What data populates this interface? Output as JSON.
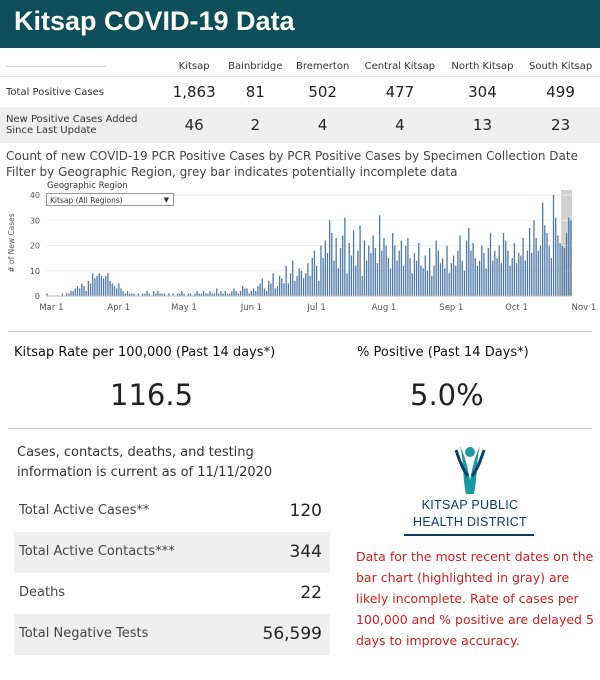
{
  "header": {
    "title": "Kitsap COVID-19 Data",
    "bg_color": "#0e4d5a"
  },
  "summary": {
    "columns": [
      "Kitsap",
      "Bainbridge",
      "Bremerton",
      "Central Kitsap",
      "North Kitsap",
      "South Kitsap"
    ],
    "total_row": {
      "label": "Total Positive Cases",
      "values": [
        "1,863",
        "81",
        "502",
        "477",
        "304",
        "499"
      ]
    },
    "new_row": {
      "label_line1": "New Positive Cases Added",
      "label_line2": "Since Last Update",
      "values": [
        "46",
        "2",
        "4",
        "4",
        "13",
        "23"
      ]
    }
  },
  "chart": {
    "title": "Count of new COVID-19 PCR Positive Cases by PCR Positive Cases by Specimen Collection Date",
    "subtitle": "Filter by Geographic Region, grey bar indicates potentially incomplete data",
    "filter_label": "Geographic Region",
    "filter_value": "Kitsap (All Regions)"
  },
  "chart_data": {
    "type": "bar",
    "ylabel": "# of New Cases",
    "ylim": [
      0,
      42
    ],
    "yticks": [
      0,
      10,
      20,
      30,
      40
    ],
    "xticks": [
      "Mar 1",
      "Apr 1",
      "May 1",
      "Jun 1",
      "Jul 1",
      "Aug 1",
      "Sep 1",
      "Oct 1",
      "Nov 1"
    ],
    "start_date": "2020-02-28",
    "values": [
      1,
      0,
      0,
      0,
      0,
      0,
      0,
      1,
      0,
      1,
      1,
      2,
      2,
      3,
      4,
      3,
      5,
      4,
      2,
      6,
      5,
      9,
      7,
      8,
      9,
      8,
      7,
      8,
      9,
      6,
      5,
      4,
      3,
      5,
      3,
      2,
      1,
      2,
      1,
      1,
      1,
      0,
      1,
      0,
      1,
      1,
      2,
      1,
      0,
      2,
      1,
      2,
      1,
      1,
      1,
      0,
      1,
      0,
      1,
      0,
      1,
      1,
      2,
      1,
      0,
      1,
      1,
      0,
      1,
      2,
      1,
      1,
      2,
      1,
      1,
      2,
      1,
      1,
      3,
      1,
      2,
      1,
      2,
      1,
      1,
      2,
      3,
      2,
      1,
      2,
      4,
      3,
      3,
      1,
      2,
      3,
      2,
      4,
      5,
      7,
      3,
      2,
      6,
      5,
      9,
      3,
      4,
      8,
      7,
      5,
      12,
      5,
      9,
      14,
      6,
      8,
      11,
      10,
      7,
      9,
      13,
      8,
      15,
      18,
      12,
      6,
      20,
      15,
      22,
      17,
      30,
      25,
      14,
      23,
      11,
      19,
      24,
      31,
      9,
      21,
      16,
      26,
      12,
      18,
      28,
      8,
      22,
      14,
      20,
      17,
      24,
      19,
      13,
      32,
      18,
      23,
      20,
      15,
      11,
      25,
      20,
      14,
      18,
      22,
      12,
      20,
      23,
      15,
      9,
      17,
      14,
      21,
      12,
      11,
      16,
      10,
      19,
      8,
      12,
      22,
      18,
      13,
      15,
      11,
      20,
      9,
      13,
      16,
      12,
      18,
      24,
      14,
      10,
      22,
      27,
      18,
      21,
      15,
      12,
      14,
      20,
      17,
      11,
      19,
      25,
      14,
      18,
      15,
      20,
      13,
      25,
      22,
      18,
      12,
      15,
      21,
      13,
      17,
      16,
      23,
      14,
      18,
      27,
      17,
      30,
      23,
      18,
      20,
      37,
      28,
      25,
      20,
      15,
      40,
      31,
      24,
      21,
      20,
      19,
      25,
      31,
      30
    ],
    "incomplete_last": 5
  },
  "kpis": {
    "rate_label": "Kitsap Rate per 100,000 (Past 14 days*)",
    "rate_value": "116.5",
    "pct_label": "% Positive (Past 14 Days*)",
    "pct_value": "5.0%"
  },
  "info": {
    "text": "Cases, contacts, deaths, and testing information is current as of 11/11/2020"
  },
  "stats": [
    {
      "label": "Total Active Cases**",
      "value": "120"
    },
    {
      "label": "Total Active Contacts***",
      "value": "344"
    },
    {
      "label": "Deaths",
      "value": "22"
    },
    {
      "label": "Total Negative Tests",
      "value": "56,599"
    }
  ],
  "logo": {
    "line1": "KITSAP PUBLIC",
    "line2": "HEALTH DISTRICT"
  },
  "note": "Data for the most recent dates on the bar chart (highlighted in gray) are likely incomplete. Rate of cases per 100,000 and % positive are delayed 5 days to improve accuracy."
}
